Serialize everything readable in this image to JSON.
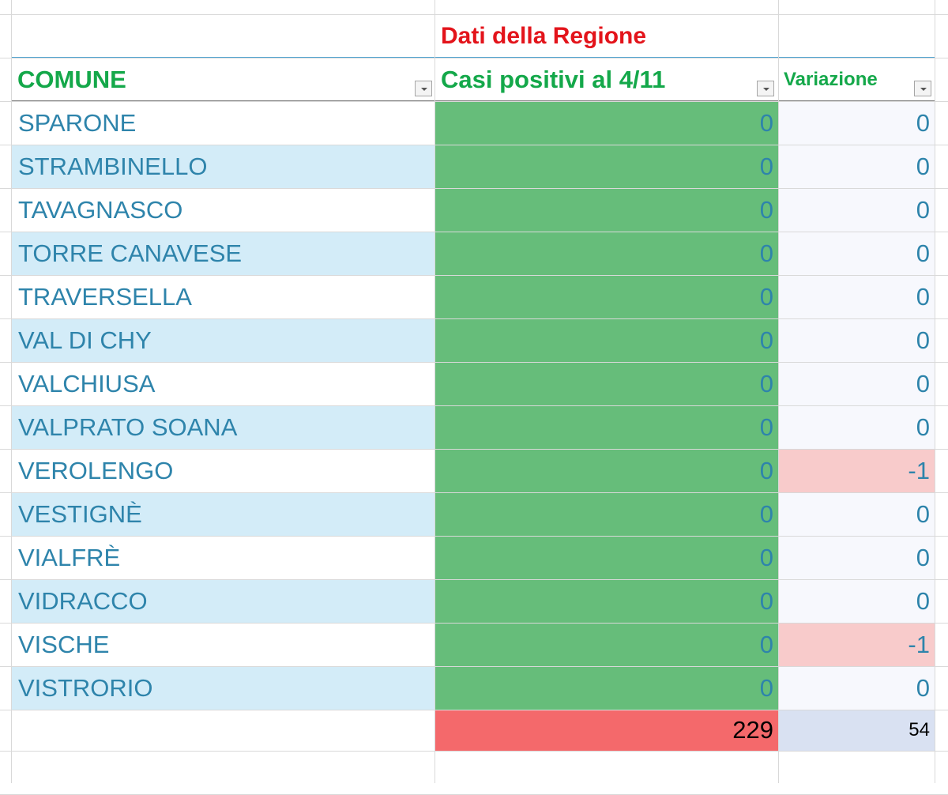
{
  "header": {
    "region_label": "Dati della Regione",
    "columns": [
      "COMUNE",
      "Casi positivi al 4/11",
      "Variazione"
    ]
  },
  "rows": [
    [
      "SPARONE",
      0,
      0
    ],
    [
      "STRAMBINELLO",
      0,
      0
    ],
    [
      "TAVAGNASCO",
      0,
      0
    ],
    [
      "TORRE CANAVESE",
      0,
      0
    ],
    [
      "TRAVERSELLA",
      0,
      0
    ],
    [
      "VAL DI CHY",
      0,
      0
    ],
    [
      "VALCHIUSA",
      0,
      0
    ],
    [
      "VALPRATO SOANA",
      0,
      0
    ],
    [
      "VEROLENGO",
      0,
      -1
    ],
    [
      "VESTIGNÈ",
      0,
      0
    ],
    [
      "VIALFRÈ",
      0,
      0
    ],
    [
      "VIDRACCO",
      0,
      0
    ],
    [
      "VISCHE",
      0,
      -1
    ],
    [
      "VISTRORIO",
      0,
      0
    ]
  ],
  "totals": [
    229,
    54
  ]
}
